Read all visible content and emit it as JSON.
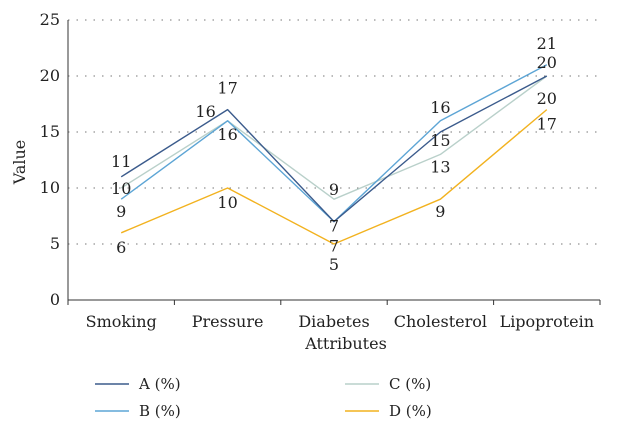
{
  "chart_data": {
    "type": "line",
    "categories": [
      "Smoking",
      "Pressure",
      "Diabetes",
      "Cholesterol",
      "Lipoprotein"
    ],
    "xlabel": "Attributes",
    "ylabel": "Value",
    "ylim": [
      0,
      25
    ],
    "yticks": [
      0,
      5,
      10,
      15,
      20,
      25
    ],
    "grid": true,
    "legend_position": "bottom",
    "series": [
      {
        "name": "A (%)",
        "color": "#3b5b8c",
        "values": [
          11,
          17,
          7,
          15,
          20
        ]
      },
      {
        "name": "B (%)",
        "color": "#5da5d5",
        "values": [
          9,
          16,
          7,
          16,
          21
        ]
      },
      {
        "name": "C (%)",
        "color": "#b9d0ca",
        "values": [
          10,
          16,
          9,
          13,
          20
        ]
      },
      {
        "name": "D (%)",
        "color": "#f2b21f",
        "values": [
          6,
          10,
          5,
          9,
          17
        ]
      }
    ]
  }
}
